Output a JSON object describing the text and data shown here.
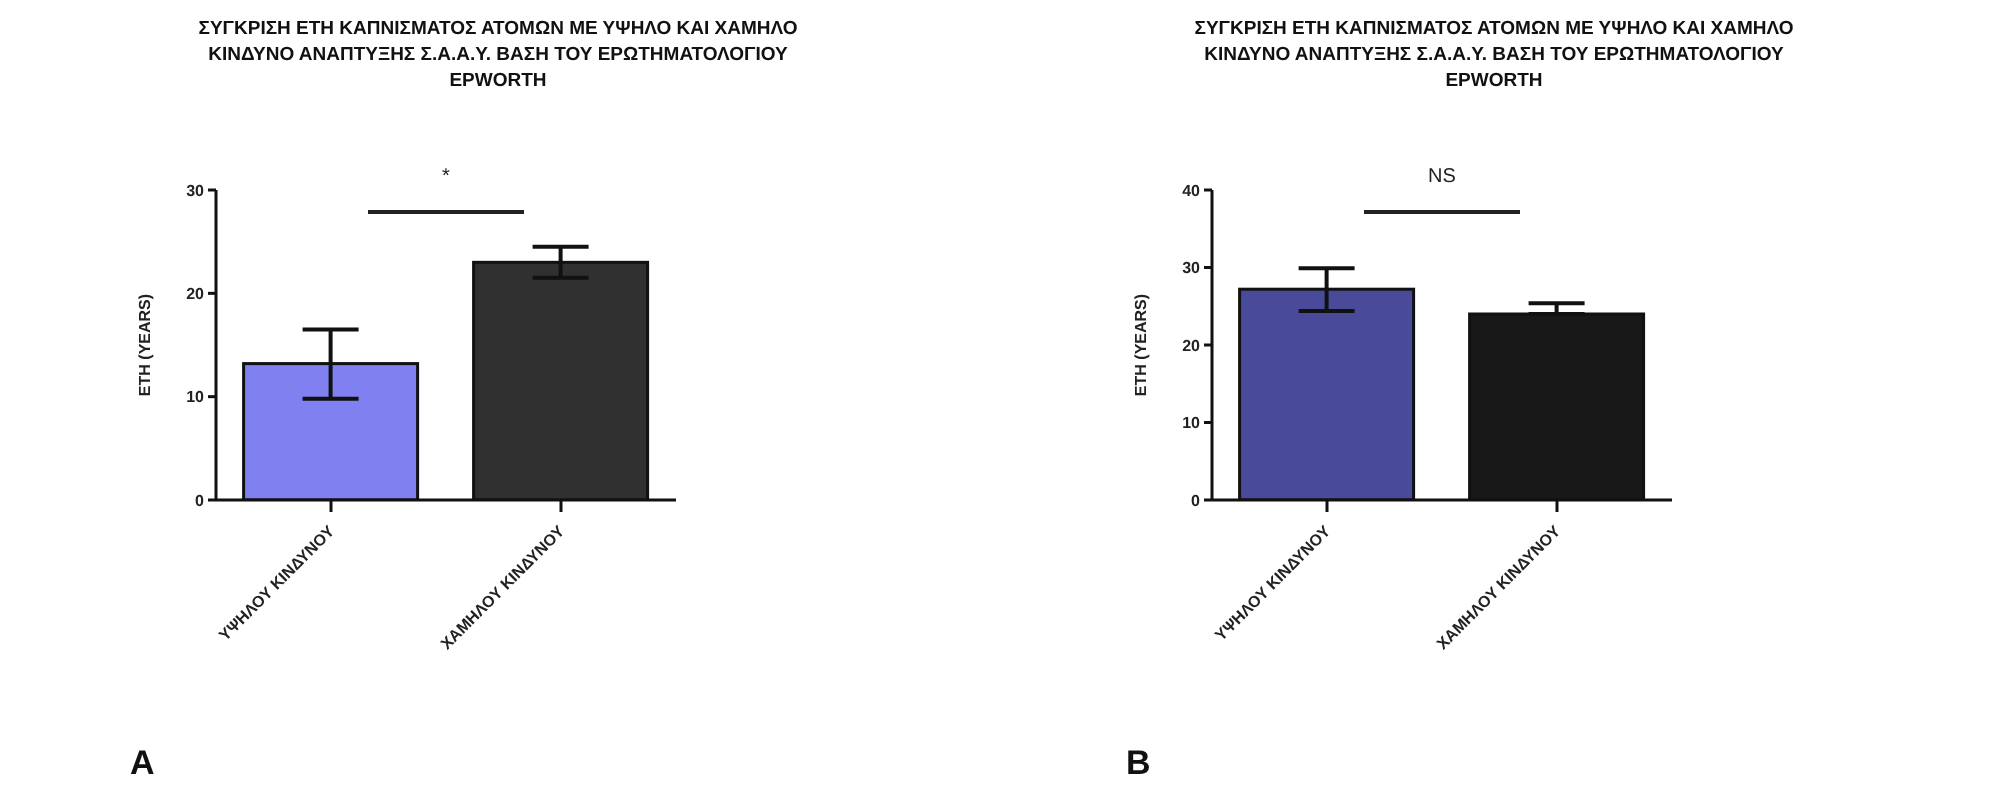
{
  "chart_data": [
    {
      "type": "bar",
      "title": "ΣΥΓΚΡΙΣΗ ΕΤΗ ΚΑΠΝΙΣΜΑΤΟΣ ΑΤΟΜΩΝ ΜΕ ΥΨΗΛΟ ΚΑΙ ΧΑΜΗΛΟ\nΚΙΝΔΥΝΟ ΑΝΑΠΤΥΞΗΣ Σ.Α.Α.Υ. ΒΑΣΗ ΤΟΥ ΕΡΩΤΗΜΑΤΟΛΟΓΙΟΥ\nEPWORTH",
      "ylabel": "ETH (YEARS)",
      "categories": [
        "ΥΨΗΛΟΥ ΚΙΝΔΥΝΟΥ",
        "ΧΑΜΗΛΟΥ ΚΙΝΔΥΝΟΥ"
      ],
      "values": [
        13.2,
        23
      ],
      "colors": [
        "#8080f0",
        "#303030"
      ],
      "errors": [
        [
          9.8,
          16.5
        ],
        [
          21.5,
          24.5
        ]
      ],
      "ylim": [
        0,
        30
      ],
      "yticks": [
        0,
        10,
        20,
        30
      ],
      "annotations": [
        "*",
        "A"
      ]
    },
    {
      "type": "bar",
      "title": "ΣΥΓΚΡΙΣΗ ΕΤΗ ΚΑΠΝΙΣΜΑΤΟΣ ΑΤΟΜΩΝ ΜΕ ΥΨΗΛΟ ΚΑΙ ΧΑΜΗΛΟ\nΚΙΝΔΥΝΟ ΑΝΑΠΤΥΞΗΣ Σ.Α.Α.Υ. ΒΑΣΗ ΤΟΥ ΕΡΩΤΗΜΑΤΟΛΟΓΙΟΥ\nEPWORTH",
      "ylabel": "ETH (YEARS)",
      "categories": [
        "ΥΨΗΛΟΥ ΚΙΝΔΥΝΟΥ",
        "ΧΑΜΗΛΟΥ ΚΙΝΔΥΝΟΥ"
      ],
      "values": [
        27.2,
        24
      ],
      "colors": [
        "#4a4a9a",
        "#181818"
      ],
      "errors": [
        [
          24.4,
          29.9
        ],
        [
          24,
          25.4
        ]
      ],
      "ylim": [
        0,
        40
      ],
      "yticks": [
        0,
        10,
        20,
        30,
        40
      ],
      "annotations": [
        "NS",
        "B"
      ]
    }
  ]
}
